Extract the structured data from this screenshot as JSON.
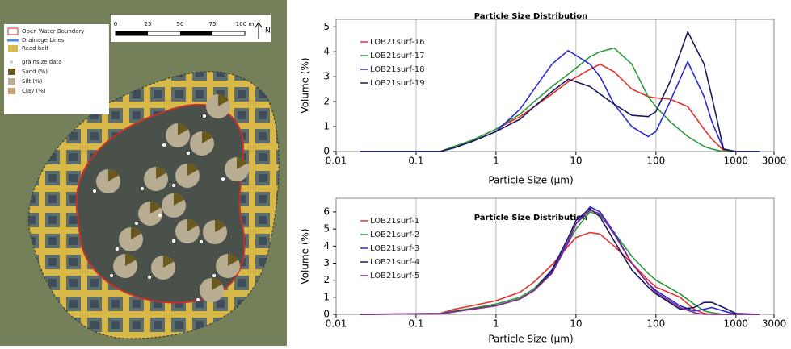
{
  "map": {
    "legend": [
      "Open Water Boundary",
      "Drainage Lines",
      "Reed belt",
      "grainsize data",
      "Sand (%)",
      "Silt (%)",
      "Clay (%)"
    ],
    "scale_labels": [
      "0",
      "25",
      "50",
      "75",
      "100 m"
    ],
    "north": "N"
  },
  "chart_data": [
    {
      "type": "line",
      "title": "Particle Size Distribution",
      "x_label": "Particle Size (µm)",
      "y_label": "Volume (%)",
      "log_x": true,
      "grid": true,
      "legend": "upper left",
      "x": [
        0.02,
        0.2,
        0.3,
        0.5,
        1,
        2,
        3,
        5,
        8,
        15,
        20,
        30,
        50,
        80,
        100,
        150,
        250,
        400,
        500,
        700,
        1000,
        2000
      ],
      "xlim": [
        0.01,
        3000
      ],
      "xticks": [
        0.01,
        0.1,
        1,
        10,
        100,
        1000,
        3000
      ],
      "ylim": [
        0,
        5.3
      ],
      "yticks": [
        0,
        1,
        2,
        3,
        4,
        5
      ],
      "series": [
        {
          "name": "LOB21surf-16",
          "color": "#e8302a",
          "values": [
            0,
            0,
            0.2,
            0.45,
            0.9,
            1.4,
            1.8,
            2.3,
            2.8,
            3.3,
            3.5,
            3.2,
            2.5,
            2.2,
            2.15,
            2.1,
            1.8,
            0.9,
            0.5,
            0.05,
            0,
            0
          ]
        },
        {
          "name": "LOB21surf-17",
          "color": "#2a9a3a",
          "values": [
            0,
            0,
            0.2,
            0.45,
            0.9,
            1.5,
            2.0,
            2.6,
            3.1,
            3.8,
            4.0,
            4.15,
            3.5,
            2.2,
            1.8,
            1.2,
            0.6,
            0.2,
            0.1,
            0,
            0,
            0
          ]
        },
        {
          "name": "LOB21surf-18",
          "color": "#2a2ad8",
          "values": [
            0,
            0,
            0.15,
            0.4,
            0.8,
            1.7,
            2.5,
            3.5,
            4.05,
            3.5,
            3.0,
            1.9,
            1.0,
            0.6,
            0.8,
            2.0,
            3.6,
            2.2,
            1.2,
            0.1,
            0,
            0
          ]
        },
        {
          "name": "LOB21surf-19",
          "color": "#1a1a60",
          "values": [
            0,
            0,
            0.15,
            0.4,
            0.8,
            1.3,
            1.8,
            2.4,
            2.9,
            2.6,
            2.3,
            1.9,
            1.45,
            1.4,
            1.6,
            2.8,
            4.8,
            3.5,
            2.2,
            0.1,
            0,
            0
          ]
        }
      ]
    },
    {
      "type": "line",
      "title": "Particle Size Distribution",
      "x_label": "Particle Size (µm)",
      "y_label": "Volume (%)",
      "log_x": true,
      "grid": true,
      "legend": "upper left",
      "x": [
        0.02,
        0.2,
        0.3,
        0.5,
        1,
        2,
        3,
        5,
        8,
        10,
        15,
        20,
        30,
        50,
        80,
        100,
        200,
        300,
        400,
        500,
        700,
        1000,
        2000
      ],
      "xlim": [
        0.01,
        3000
      ],
      "xticks": [
        0.01,
        0.1,
        1,
        10,
        100,
        1000,
        3000
      ],
      "ylim": [
        0,
        6.8
      ],
      "yticks": [
        0,
        1,
        2,
        3,
        4,
        5,
        6
      ],
      "series": [
        {
          "name": "LOB21surf-1",
          "color": "#e8302a",
          "values": [
            0,
            0.05,
            0.3,
            0.5,
            0.8,
            1.3,
            1.9,
            2.9,
            4.0,
            4.5,
            4.8,
            4.7,
            4.0,
            3.0,
            2.0,
            1.6,
            1.0,
            0.3,
            0.05,
            0,
            0,
            0,
            0
          ]
        },
        {
          "name": "LOB21surf-2",
          "color": "#2a9a3a",
          "values": [
            0,
            0.05,
            0.2,
            0.35,
            0.6,
            1.0,
            1.5,
            2.6,
            4.2,
            5.0,
            6.0,
            5.8,
            4.8,
            3.4,
            2.4,
            2.0,
            1.2,
            0.6,
            0.2,
            0.1,
            0,
            0,
            0
          ]
        },
        {
          "name": "LOB21surf-3",
          "color": "#2a2ad8",
          "values": [
            0,
            0.03,
            0.15,
            0.3,
            0.5,
            0.9,
            1.4,
            2.5,
            4.3,
            5.3,
            6.3,
            6.0,
            4.8,
            3.0,
            1.8,
            1.4,
            0.5,
            0.2,
            0.3,
            0.4,
            0.2,
            0,
            0
          ]
        },
        {
          "name": "LOB21surf-4",
          "color": "#1a1a60",
          "values": [
            0,
            0.03,
            0.15,
            0.3,
            0.5,
            0.9,
            1.4,
            2.6,
            4.5,
            5.5,
            6.2,
            5.7,
            4.3,
            2.6,
            1.6,
            1.2,
            0.3,
            0.4,
            0.7,
            0.7,
            0.4,
            0.05,
            0
          ]
        },
        {
          "name": "LOB21surf-5",
          "color": "#8a2a8a",
          "values": [
            0,
            0.03,
            0.15,
            0.3,
            0.5,
            0.9,
            1.4,
            2.4,
            4.2,
            5.3,
            6.1,
            5.9,
            4.7,
            3.0,
            1.8,
            1.3,
            0.4,
            0.1,
            0,
            0,
            0,
            0,
            0
          ]
        }
      ]
    }
  ]
}
